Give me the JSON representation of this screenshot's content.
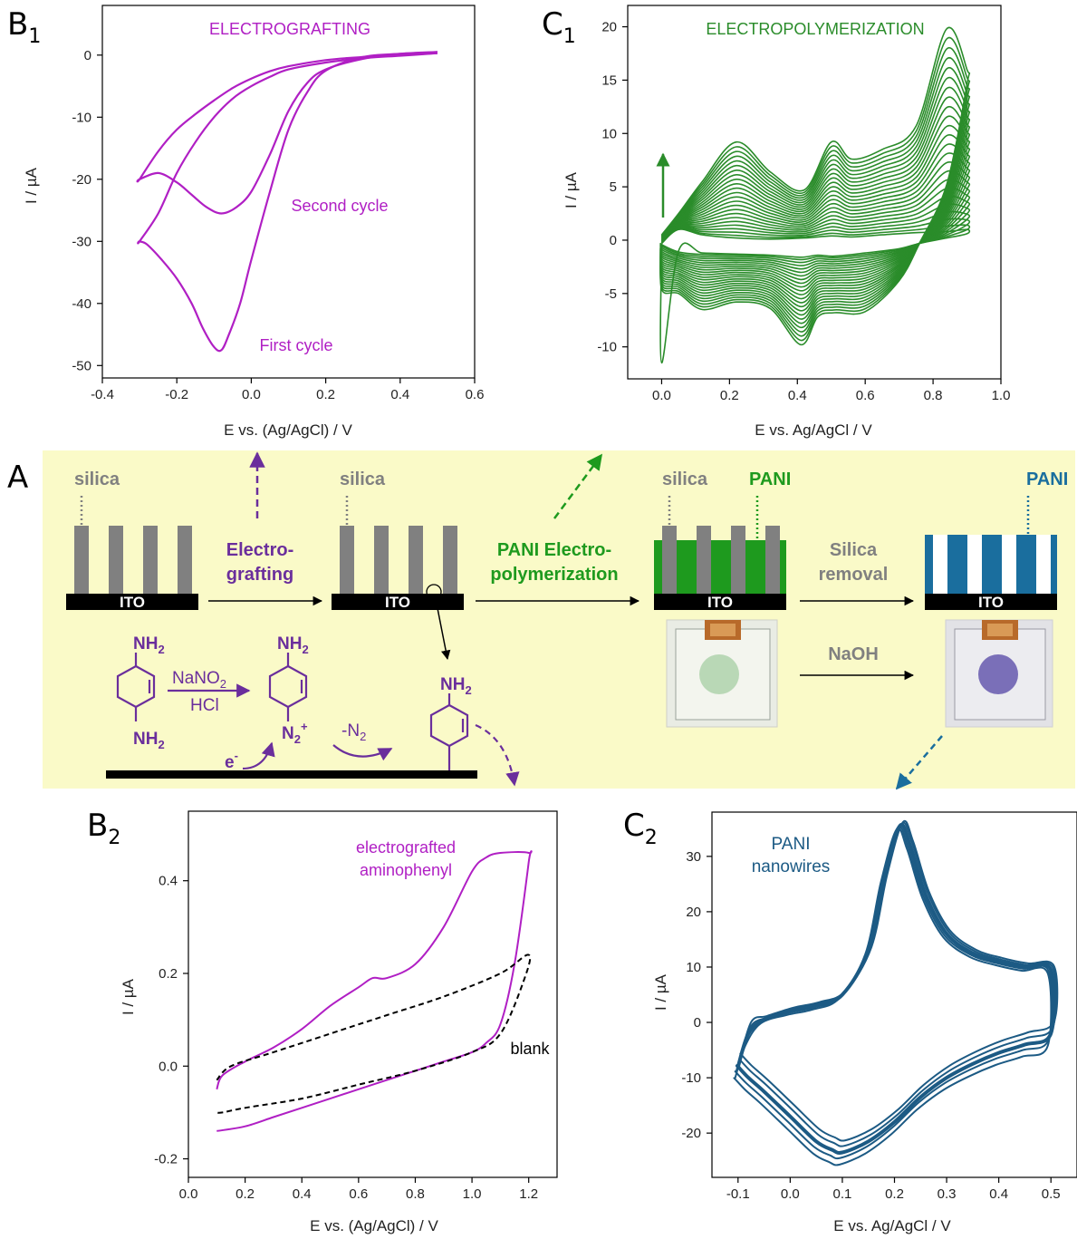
{
  "colors": {
    "purple": "#B01FC4",
    "green": "#2A8C2A",
    "blue": "#1C5A84",
    "scheme_purple": "#6A2E9C",
    "scheme_green": "#1E9A1E",
    "scheme_blue": "#1A6E9E",
    "scheme_bg": "#FAFAC8",
    "gray": "#808080"
  },
  "panels": {
    "B1": {
      "letter": "B",
      "sub": "1"
    },
    "C1": {
      "letter": "C",
      "sub": "1"
    },
    "A": {
      "letter": "A"
    },
    "B2": {
      "letter": "B",
      "sub": "2"
    },
    "C2": {
      "letter": "C",
      "sub": "2"
    }
  },
  "scheme": {
    "silica1": "silica",
    "silica2": "silica",
    "silica3": "silica",
    "pani_green": "PANI",
    "pani_blue": "PANI",
    "ito1": "ITO",
    "ito2": "ITO",
    "ito3": "ITO",
    "ito4": "ITO",
    "step1_line1": "Electro-",
    "step1_line2": "grafting",
    "step2_line1": "PANI Electro-",
    "step2_line2": "polymerization",
    "step3_line1": "Silica",
    "step3_line2": "removal",
    "naoh": "NaOH",
    "nh2_a": "NH",
    "nh2_a_sub": "2",
    "nh2_b": "NH",
    "nh2_b_sub": "2",
    "nh2_c": "NH",
    "nh2_c_sub": "2",
    "nh2_d": "NH",
    "nh2_d_sub": "2",
    "nano2": "NaNO",
    "nano2_sub": "2",
    "hcl": "HCl",
    "n2plus": "N",
    "n2plus_sub": "2",
    "n2plus_sup": "+",
    "minus_n2": "-N",
    "minus_n2_sub": "2",
    "electron": "e",
    "electron_sup": "-"
  },
  "chart_data": [
    {
      "id": "B1",
      "type": "line",
      "title": "ELECTROGRAFTING",
      "xlabel": "E vs. (Ag/AgCl) / V",
      "ylabel": "I / µA",
      "xlim": [
        -0.4,
        0.6
      ],
      "ylim": [
        -52,
        8
      ],
      "xticks": [
        "-0.4",
        "-0.2",
        "0.0",
        "0.2",
        "0.4",
        "0.6"
      ],
      "yticks": [
        "0",
        "-10",
        "-20",
        "-30",
        "-40",
        "-50"
      ],
      "annotations": [
        "Second cycle",
        "First cycle"
      ],
      "series": [
        {
          "name": "First cycle",
          "x": [
            0.5,
            0.4,
            0.3,
            0.2,
            0.15,
            0.1,
            0.05,
            0.0,
            -0.03,
            -0.06,
            -0.08,
            -0.1,
            -0.13,
            -0.16,
            -0.2,
            -0.24,
            -0.28,
            -0.3,
            -0.3,
            -0.25,
            -0.2,
            -0.15,
            -0.1,
            -0.05,
            0.0,
            0.05,
            0.1,
            0.2,
            0.3,
            0.4,
            0.5
          ],
          "y": [
            0.5,
            0.2,
            -0.3,
            -2.5,
            -6,
            -12,
            -22,
            -33,
            -40,
            -45,
            -47.5,
            -47,
            -44,
            -40,
            -36,
            -33,
            -30.5,
            -30,
            -30,
            -25.5,
            -19,
            -14,
            -10,
            -7,
            -5,
            -3.5,
            -2.3,
            -1.2,
            -0.5,
            -0.1,
            0.3
          ]
        },
        {
          "name": "Second cycle",
          "x": [
            0.5,
            0.4,
            0.3,
            0.2,
            0.15,
            0.1,
            0.05,
            0.0,
            -0.04,
            -0.08,
            -0.12,
            -0.16,
            -0.2,
            -0.25,
            -0.3,
            -0.3,
            -0.25,
            -0.2,
            -0.15,
            -0.1,
            -0.05,
            0.0,
            0.05,
            0.1,
            0.2,
            0.3,
            0.4,
            0.5
          ],
          "y": [
            0.5,
            0.2,
            -0.6,
            -2.3,
            -4.5,
            -9,
            -16,
            -22,
            -24.5,
            -25.5,
            -24.5,
            -22.5,
            -20.5,
            -19,
            -20,
            -20,
            -15.5,
            -12,
            -9.5,
            -7.3,
            -5.3,
            -3.8,
            -2.6,
            -1.8,
            -0.8,
            -0.3,
            0.0,
            0.3
          ]
        }
      ]
    },
    {
      "id": "C1",
      "type": "line",
      "title": "ELECTROPOLYMERIZATION",
      "xlabel": "E vs. Ag/AgCl / V",
      "ylabel": "I / µA",
      "xlim": [
        -0.1,
        1.0
      ],
      "ylim": [
        -13,
        22
      ],
      "xticks": [
        "0.0",
        "0.2",
        "0.4",
        "0.6",
        "0.8",
        "1.0"
      ],
      "yticks": [
        "20",
        "15",
        "10",
        "5",
        "0",
        "-5",
        "-10"
      ],
      "cycles": 24,
      "final_cycle_peaks_oxidation": [
        [
          0.22,
          9.0
        ],
        [
          0.5,
          8.8
        ],
        [
          0.84,
          19.0
        ]
      ],
      "final_cycle_peaks_reduction": [
        [
          0.08,
          -6.5
        ],
        [
          0.41,
          -9.8
        ],
        [
          0.51,
          -6.8
        ]
      ],
      "first_cycle_start_current": -11.5
    },
    {
      "id": "B2",
      "type": "line",
      "xlabel": "E vs. (Ag/AgCl) / V",
      "ylabel": "I / µA",
      "xlim": [
        0.0,
        1.3
      ],
      "ylim": [
        -0.24,
        0.55
      ],
      "xticks": [
        "0.0",
        "0.2",
        "0.4",
        "0.6",
        "0.8",
        "1.0",
        "1.2"
      ],
      "yticks": [
        "0.4",
        "0.2",
        "0.0",
        "-0.2"
      ],
      "annotations": [
        "electrografted",
        "aminophenyl",
        "blank"
      ],
      "series": [
        {
          "name": "electrografted aminophenyl",
          "x": [
            0.1,
            0.12,
            0.2,
            0.3,
            0.4,
            0.5,
            0.6,
            0.65,
            0.7,
            0.8,
            0.9,
            1.0,
            1.05,
            1.1,
            1.2,
            1.2,
            1.15,
            1.1,
            1.05,
            1.0,
            0.9,
            0.8,
            0.7,
            0.6,
            0.5,
            0.4,
            0.3,
            0.2,
            0.1
          ],
          "y": [
            -0.05,
            -0.02,
            0.01,
            0.04,
            0.08,
            0.13,
            0.17,
            0.19,
            0.19,
            0.22,
            0.3,
            0.42,
            0.45,
            0.46,
            0.46,
            0.44,
            0.22,
            0.09,
            0.05,
            0.03,
            0.01,
            -0.01,
            -0.03,
            -0.05,
            -0.07,
            -0.09,
            -0.11,
            -0.13,
            -0.14
          ]
        },
        {
          "name": "blank",
          "x": [
            0.1,
            0.15,
            0.3,
            0.5,
            0.7,
            0.9,
            1.1,
            1.2,
            1.18,
            1.1,
            1.0,
            0.8,
            0.6,
            0.4,
            0.2,
            0.12,
            0.1
          ],
          "y": [
            -0.03,
            0.0,
            0.03,
            0.07,
            0.11,
            0.15,
            0.2,
            0.24,
            0.18,
            0.07,
            0.03,
            -0.01,
            -0.04,
            -0.07,
            -0.09,
            -0.1,
            -0.1
          ]
        }
      ]
    },
    {
      "id": "C2",
      "type": "line",
      "title": "PANI nanowires",
      "xlabel": "E vs. Ag/AgCl / V",
      "ylabel": "I / µA",
      "xlim": [
        -0.15,
        0.55
      ],
      "ylim": [
        -28,
        38
      ],
      "xticks": [
        "-0.1",
        "0.0",
        "0.1",
        "0.2",
        "0.3",
        "0.4",
        "0.5"
      ],
      "yticks": [
        "30",
        "20",
        "10",
        "0",
        "-10",
        "-20"
      ],
      "series": [
        {
          "name": "PANI nanowires",
          "x": [
            -0.1,
            -0.08,
            -0.05,
            0.0,
            0.05,
            0.1,
            0.15,
            0.18,
            0.21,
            0.23,
            0.26,
            0.3,
            0.35,
            0.4,
            0.45,
            0.5,
            0.5,
            0.45,
            0.4,
            0.35,
            0.3,
            0.25,
            0.2,
            0.15,
            0.1,
            0.08,
            0.05,
            0.0,
            -0.05,
            -0.08,
            -0.1,
            -0.1
          ],
          "y": [
            -8,
            -2,
            0.5,
            2,
            3,
            5,
            13,
            26,
            35.5,
            32,
            23,
            16,
            12.5,
            11,
            10,
            9.5,
            -2,
            -4,
            -5.5,
            -7.5,
            -10,
            -13.5,
            -18,
            -21.5,
            -23.5,
            -23,
            -21.5,
            -17,
            -12.5,
            -10,
            -8,
            -8
          ]
        }
      ]
    }
  ]
}
